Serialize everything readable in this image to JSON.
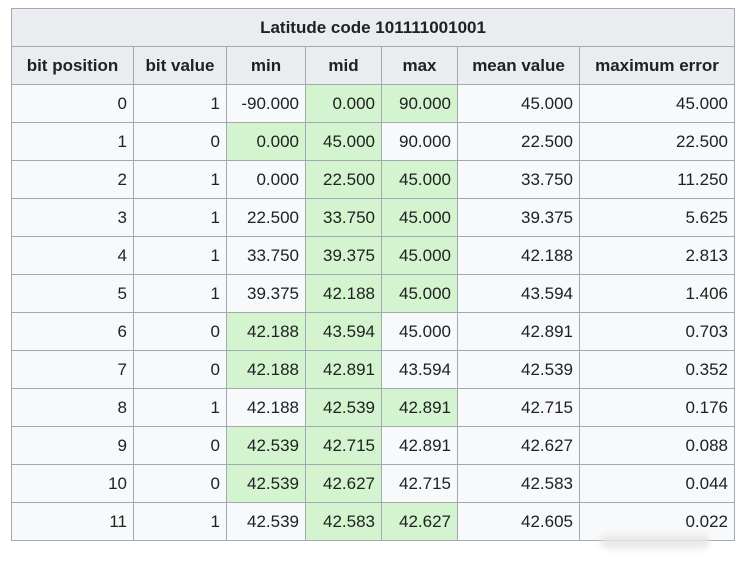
{
  "table": {
    "title": "Latitude code 101111001001",
    "headers": [
      "bit position",
      "bit value",
      "min",
      "mid",
      "max",
      "mean value",
      "maximum error"
    ],
    "rows": [
      {
        "pos": "0",
        "bit": "1",
        "min": "-90.000",
        "mid": "0.000",
        "max": "90.000",
        "mean": "45.000",
        "err": "45.000",
        "hl": [
          "mid",
          "max"
        ]
      },
      {
        "pos": "1",
        "bit": "0",
        "min": "0.000",
        "mid": "45.000",
        "max": "90.000",
        "mean": "22.500",
        "err": "22.500",
        "hl": [
          "min",
          "mid"
        ]
      },
      {
        "pos": "2",
        "bit": "1",
        "min": "0.000",
        "mid": "22.500",
        "max": "45.000",
        "mean": "33.750",
        "err": "11.250",
        "hl": [
          "mid",
          "max"
        ]
      },
      {
        "pos": "3",
        "bit": "1",
        "min": "22.500",
        "mid": "33.750",
        "max": "45.000",
        "mean": "39.375",
        "err": "5.625",
        "hl": [
          "mid",
          "max"
        ]
      },
      {
        "pos": "4",
        "bit": "1",
        "min": "33.750",
        "mid": "39.375",
        "max": "45.000",
        "mean": "42.188",
        "err": "2.813",
        "hl": [
          "mid",
          "max"
        ]
      },
      {
        "pos": "5",
        "bit": "1",
        "min": "39.375",
        "mid": "42.188",
        "max": "45.000",
        "mean": "43.594",
        "err": "1.406",
        "hl": [
          "mid",
          "max"
        ]
      },
      {
        "pos": "6",
        "bit": "0",
        "min": "42.188",
        "mid": "43.594",
        "max": "45.000",
        "mean": "42.891",
        "err": "0.703",
        "hl": [
          "min",
          "mid"
        ]
      },
      {
        "pos": "7",
        "bit": "0",
        "min": "42.188",
        "mid": "42.891",
        "max": "43.594",
        "mean": "42.539",
        "err": "0.352",
        "hl": [
          "min",
          "mid"
        ]
      },
      {
        "pos": "8",
        "bit": "1",
        "min": "42.188",
        "mid": "42.539",
        "max": "42.891",
        "mean": "42.715",
        "err": "0.176",
        "hl": [
          "mid",
          "max"
        ]
      },
      {
        "pos": "9",
        "bit": "0",
        "min": "42.539",
        "mid": "42.715",
        "max": "42.891",
        "mean": "42.627",
        "err": "0.088",
        "hl": [
          "min",
          "mid"
        ]
      },
      {
        "pos": "10",
        "bit": "0",
        "min": "42.539",
        "mid": "42.627",
        "max": "42.715",
        "mean": "42.583",
        "err": "0.044",
        "hl": [
          "min",
          "mid"
        ]
      },
      {
        "pos": "11",
        "bit": "1",
        "min": "42.539",
        "mid": "42.583",
        "max": "42.627",
        "mean": "42.605",
        "err": "0.022",
        "hl": [
          "mid",
          "max"
        ]
      }
    ]
  },
  "colors": {
    "highlight": "#d4f4d0",
    "header_bg": "#eaecf0",
    "cell_bg": "#f8f9fa",
    "border": "#a2a9b1"
  }
}
